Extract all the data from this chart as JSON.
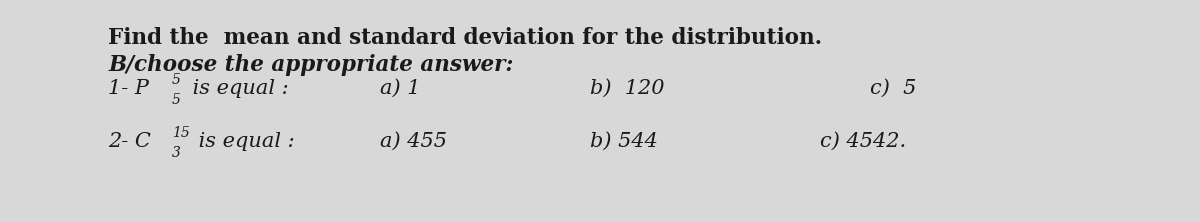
{
  "background_color": "#d8d8d8",
  "title_line1": "Find the  mean and standard deviation for the distribution.",
  "title_line2": "B/choose the appropriate answer:",
  "q1_label": "1- P",
  "q1_sup": "5",
  "q1_sub": "5",
  "q1_rest": " is equal :",
  "q1_a": "a) 1",
  "q1_b": "b)  120",
  "q1_c": "c)  5",
  "q2_label": "2- C",
  "q2_sup": "15",
  "q2_sub": "3",
  "q2_rest": " is equal :",
  "q2_a": "a) 455",
  "q2_b": "b) 544",
  "q2_c": "c) 4542.",
  "text_color": "#1a1a1a",
  "figsize": [
    12.0,
    2.22
  ],
  "dpi": 100
}
